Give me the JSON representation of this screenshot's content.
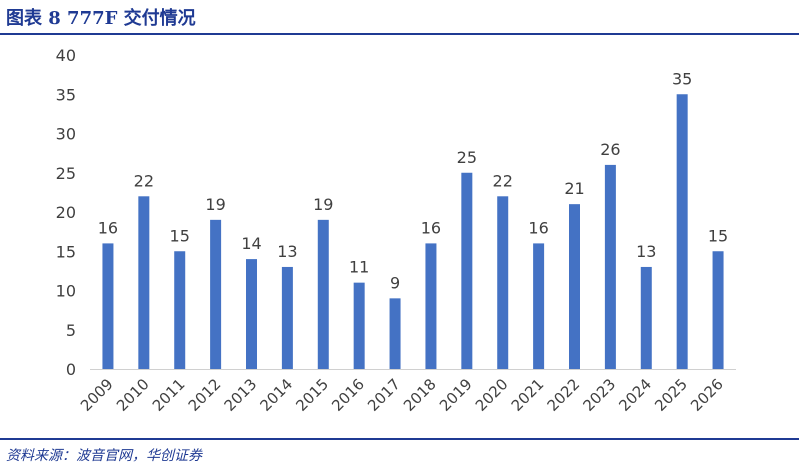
{
  "figure": {
    "title": "图表 8   777F 交付情况",
    "source": "资料来源：波音官网，华创证券"
  },
  "chart_data": {
    "type": "bar",
    "categories": [
      "2009",
      "2010",
      "2011",
      "2012",
      "2013",
      "2014",
      "2015",
      "2016",
      "2017",
      "2018",
      "2019",
      "2020",
      "2021",
      "2022",
      "2023",
      "2024",
      "2025",
      "2026"
    ],
    "values": [
      16,
      22,
      15,
      19,
      14,
      13,
      19,
      11,
      9,
      16,
      25,
      22,
      16,
      21,
      26,
      13,
      35,
      15
    ],
    "yticks": [
      0,
      5,
      10,
      15,
      20,
      25,
      30,
      35,
      40
    ],
    "ylim": [
      0,
      40
    ],
    "bar_color": "#4472c4",
    "grid": false,
    "legend": "none",
    "data_labels": true,
    "xtick_rotation": -45
  }
}
